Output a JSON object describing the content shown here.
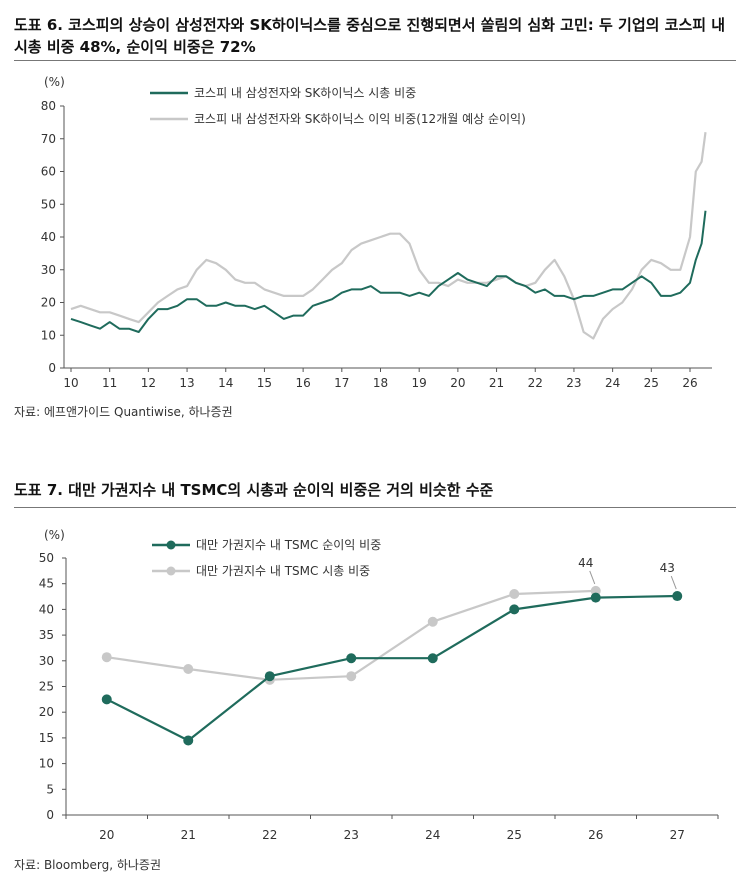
{
  "figures": [
    {
      "title": "도표 6. 코스피의 상승이 삼성전자와 SK하이닉스를 중심으로 진행되면서 쏠림의 심화 고민: 두 기업의 코스피 내 시총 비중 48%, 순이익 비중은 72%",
      "source": "자료: 에프앤가이드 Quantiwise, 하나증권"
    },
    {
      "title": "도표 7. 대만 가권지수 내 TSMC의 시총과 순이익 비중은 거의 비슷한 수준",
      "source": "자료: Bloomberg, 하나증권"
    }
  ],
  "colors": {
    "teal": "#1f6b5c",
    "gray": "#c8c8c8",
    "axis": "#555555"
  },
  "chart_data": [
    {
      "type": "line",
      "ylabel": "(%)",
      "xlabel": "",
      "ylim": [
        0,
        80
      ],
      "yticks": [
        0,
        10,
        20,
        30,
        40,
        50,
        60,
        70,
        80
      ],
      "xlim": [
        10,
        26.5
      ],
      "xticks": [
        "10",
        "11",
        "12",
        "13",
        "14",
        "15",
        "16",
        "17",
        "18",
        "19",
        "20",
        "21",
        "22",
        "23",
        "24",
        "25",
        "26"
      ],
      "legend_position": "top-center",
      "grid": false,
      "series": [
        {
          "name": "코스피 내 삼성전자와 SK하이닉스 시총 비중",
          "color": "#1f6b5c",
          "x": [
            10.0,
            10.25,
            10.5,
            10.75,
            11.0,
            11.25,
            11.5,
            11.75,
            12.0,
            12.25,
            12.5,
            12.75,
            13.0,
            13.25,
            13.5,
            13.75,
            14.0,
            14.25,
            14.5,
            14.75,
            15.0,
            15.25,
            15.5,
            15.75,
            16.0,
            16.25,
            16.5,
            16.75,
            17.0,
            17.25,
            17.5,
            17.75,
            18.0,
            18.25,
            18.5,
            18.75,
            19.0,
            19.25,
            19.5,
            19.75,
            20.0,
            20.25,
            20.5,
            20.75,
            21.0,
            21.25,
            21.5,
            21.75,
            22.0,
            22.25,
            22.5,
            22.75,
            23.0,
            23.25,
            23.5,
            23.75,
            24.0,
            24.25,
            24.5,
            24.75,
            25.0,
            25.25,
            25.5,
            25.75,
            26.0,
            26.15,
            26.3,
            26.4
          ],
          "values": [
            15,
            14,
            13,
            12,
            14,
            12,
            12,
            11,
            15,
            18,
            18,
            19,
            21,
            21,
            19,
            19,
            20,
            19,
            19,
            18,
            19,
            17,
            15,
            16,
            16,
            19,
            20,
            21,
            23,
            24,
            24,
            25,
            23,
            23,
            23,
            22,
            23,
            22,
            25,
            27,
            29,
            27,
            26,
            25,
            28,
            28,
            26,
            25,
            23,
            24,
            22,
            22,
            21,
            22,
            22,
            23,
            24,
            24,
            26,
            28,
            26,
            22,
            22,
            23,
            26,
            33,
            38,
            48
          ]
        },
        {
          "name": "코스피 내 삼성전자와 SK하이닉스 이익 비중(12개월 예상 순이익)",
          "color": "#c8c8c8",
          "x": [
            10.0,
            10.25,
            10.5,
            10.75,
            11.0,
            11.25,
            11.5,
            11.75,
            12.0,
            12.25,
            12.5,
            12.75,
            13.0,
            13.25,
            13.5,
            13.75,
            14.0,
            14.25,
            14.5,
            14.75,
            15.0,
            15.25,
            15.5,
            15.75,
            16.0,
            16.25,
            16.5,
            16.75,
            17.0,
            17.25,
            17.5,
            17.75,
            18.0,
            18.25,
            18.5,
            18.75,
            19.0,
            19.25,
            19.5,
            19.75,
            20.0,
            20.25,
            20.5,
            20.75,
            21.0,
            21.25,
            21.5,
            21.75,
            22.0,
            22.25,
            22.5,
            22.75,
            23.0,
            23.25,
            23.5,
            23.75,
            24.0,
            24.25,
            24.5,
            24.75,
            25.0,
            25.25,
            25.5,
            25.75,
            26.0,
            26.15,
            26.3,
            26.4
          ],
          "values": [
            18,
            19,
            18,
            17,
            17,
            16,
            15,
            14,
            17,
            20,
            22,
            24,
            25,
            30,
            33,
            32,
            30,
            27,
            26,
            26,
            24,
            23,
            22,
            22,
            22,
            24,
            27,
            30,
            32,
            36,
            38,
            39,
            40,
            41,
            41,
            38,
            30,
            26,
            26,
            25,
            27,
            26,
            26,
            26,
            27,
            28,
            26,
            25,
            26,
            30,
            33,
            28,
            21,
            11,
            9,
            15,
            18,
            20,
            24,
            30,
            33,
            32,
            30,
            30,
            40,
            60,
            63,
            72
          ]
        }
      ]
    },
    {
      "type": "line",
      "ylabel": "(%)",
      "xlabel": "",
      "ylim": [
        0,
        50
      ],
      "yticks": [
        0,
        5,
        10,
        15,
        20,
        25,
        30,
        35,
        40,
        45,
        50
      ],
      "categories": [
        "20",
        "21",
        "22",
        "23",
        "24",
        "25",
        "26",
        "27"
      ],
      "legend_position": "top-center",
      "grid": false,
      "annotations": [
        {
          "category": "26",
          "text": "44",
          "series": 1
        },
        {
          "category": "27",
          "text": "43",
          "series": 0
        }
      ],
      "series": [
        {
          "name": "대만 가권지수 내 TSMC 순이익 비중",
          "color": "#1f6b5c",
          "values": [
            22.5,
            14.5,
            27,
            30.5,
            30.5,
            40,
            42.3,
            42.6
          ]
        },
        {
          "name": "대만 가권지수 내 TSMC 시총 비중",
          "color": "#c8c8c8",
          "values": [
            30.7,
            28.4,
            26.3,
            27,
            37.6,
            43,
            43.6,
            null
          ]
        }
      ]
    }
  ]
}
